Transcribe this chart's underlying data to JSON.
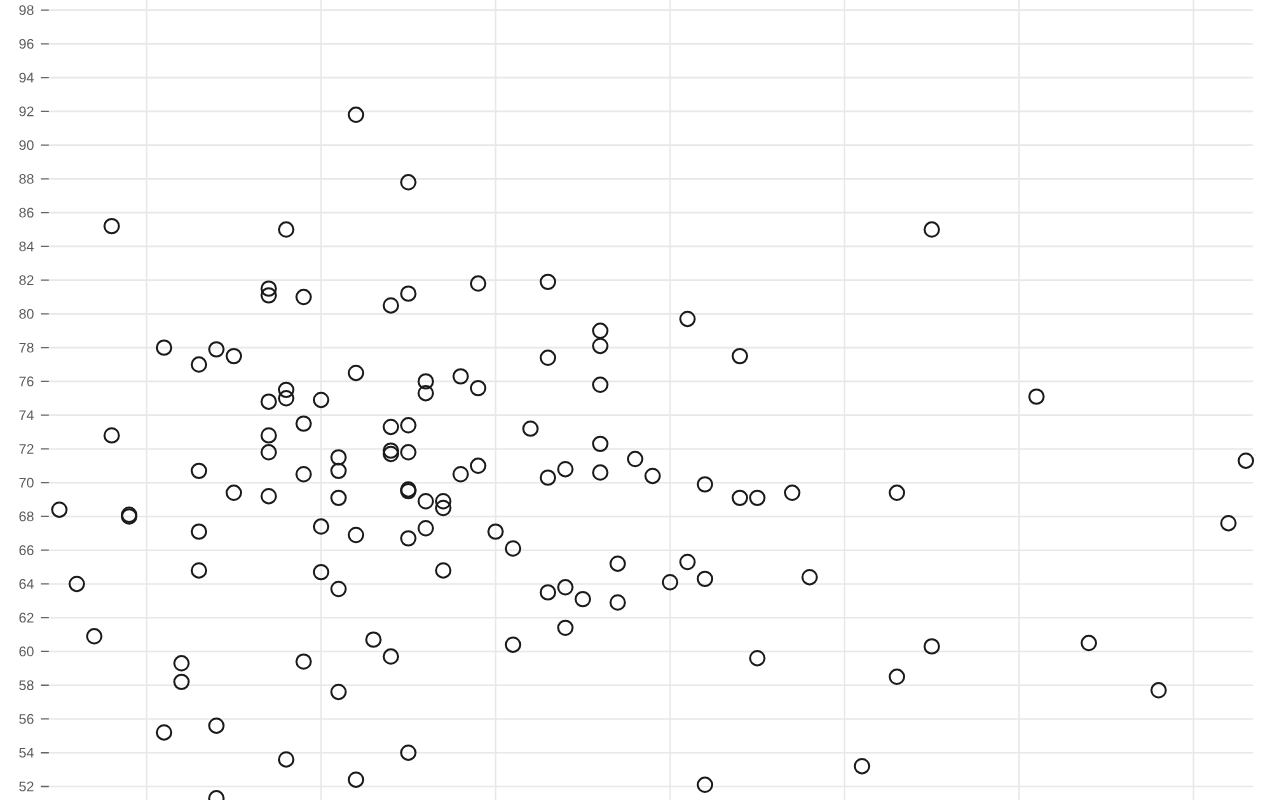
{
  "chart_data": {
    "type": "scatter",
    "marker": "circle",
    "grid": true,
    "tick_labels": "y",
    "ylim": [
      51.2,
      98.6
    ],
    "yticks": [
      52,
      54,
      56,
      58,
      60,
      62,
      64,
      66,
      68,
      70,
      72,
      74,
      76,
      78,
      80,
      82,
      84,
      86,
      88,
      90,
      92,
      94,
      96,
      98
    ],
    "categories": [
      null,
      null,
      null,
      null,
      null,
      null,
      null,
      null,
      null,
      null,
      null,
      null,
      null,
      null,
      null,
      null,
      null,
      null,
      null,
      null,
      null,
      null,
      null,
      null,
      null,
      null,
      null,
      null,
      null,
      null,
      null,
      null,
      null,
      null,
      null,
      null,
      null,
      null,
      null,
      null,
      null,
      null,
      null,
      null,
      null,
      null,
      null,
      null,
      null,
      null,
      null,
      null,
      null,
      null,
      null,
      null,
      null,
      null,
      null,
      null,
      null,
      null,
      null,
      null,
      null,
      null,
      null,
      null,
      null
    ],
    "series": [
      {
        "color": "#1a1a1a",
        "values": [
          68.4,
          64.0,
          60.9,
          72.8,
          68.0,
          null,
          78.0,
          58.2,
          77.0,
          77.9,
          77.5,
          null,
          74.8,
          53.6,
          70.5,
          67.4,
          69.1,
          66.9,
          60.7,
          71.9,
          87.8,
          75.3,
          68.5,
          76.3,
          75.6,
          67.1,
          66.1,
          73.2,
          81.9,
          63.8,
          63.1,
          79.0,
          62.9,
          71.4,
          70.4,
          64.1,
          79.7,
          69.9,
          null,
          77.5,
          69.1,
          null,
          69.4,
          64.4,
          null,
          null,
          53.2,
          null,
          69.4,
          null,
          85.0,
          null,
          null,
          null,
          null,
          null,
          75.1,
          null,
          null,
          60.5,
          null,
          null,
          null,
          57.7,
          null,
          null,
          null,
          67.6,
          71.3
        ]
      },
      {
        "color": "#1a1a1a",
        "values": [
          null,
          null,
          null,
          85.2,
          68.1,
          null,
          55.2,
          59.3,
          67.1,
          55.6,
          69.4,
          null,
          71.8,
          85.0,
          73.5,
          74.9,
          63.7,
          91.8,
          null,
          71.7,
          81.2,
          76.0,
          64.8,
          70.5,
          81.8,
          null,
          60.4,
          null,
          70.3,
          70.8,
          null,
          72.3,
          65.2,
          null,
          null,
          null,
          65.3,
          64.3,
          null,
          69.1,
          59.6,
          null,
          null,
          null,
          null,
          null,
          null,
          null,
          58.5,
          null,
          60.3,
          null,
          null,
          null,
          null,
          null,
          null,
          null,
          null,
          null,
          null,
          null,
          null,
          null,
          null,
          null,
          null,
          null,
          null
        ]
      },
      {
        "color": "#1a1a1a",
        "values": [
          null,
          null,
          null,
          null,
          null,
          null,
          null,
          null,
          64.8,
          51.3,
          null,
          null,
          81.5,
          75.5,
          81.0,
          64.7,
          71.5,
          52.4,
          null,
          73.3,
          73.4,
          67.3,
          68.9,
          null,
          71.0,
          null,
          null,
          null,
          63.5,
          61.4,
          null,
          78.1,
          null,
          null,
          null,
          null,
          null,
          52.1,
          null,
          null,
          null,
          null,
          null,
          null,
          null,
          null,
          null,
          null,
          null,
          null,
          null,
          null,
          null,
          null,
          null,
          null,
          null,
          null,
          null,
          null,
          null,
          null,
          null,
          null,
          null,
          null,
          null,
          null,
          null
        ]
      },
      {
        "color": "#1a1a1a",
        "values": [
          null,
          null,
          null,
          null,
          null,
          null,
          null,
          null,
          70.7,
          null,
          null,
          null,
          81.1,
          75.0,
          59.4,
          null,
          70.7,
          76.5,
          null,
          80.5,
          71.8,
          68.9,
          null,
          null,
          null,
          null,
          null,
          null,
          77.4,
          null,
          null,
          75.8,
          null,
          null,
          null,
          null,
          null,
          null,
          null,
          null,
          null,
          null,
          null,
          null,
          null,
          null,
          null,
          null,
          null,
          null,
          null,
          null,
          null,
          null,
          null,
          null,
          null,
          null,
          null,
          null,
          null,
          null,
          null,
          null,
          null,
          null,
          null,
          null,
          null
        ]
      },
      {
        "color": "#1a1a1a",
        "values": [
          null,
          null,
          null,
          null,
          null,
          null,
          null,
          null,
          null,
          null,
          null,
          null,
          69.2,
          null,
          null,
          null,
          57.6,
          null,
          null,
          59.7,
          54.0,
          null,
          null,
          null,
          null,
          null,
          null,
          null,
          null,
          null,
          null,
          70.6,
          null,
          null,
          null,
          null,
          null,
          null,
          null,
          null,
          null,
          null,
          null,
          null,
          null,
          null,
          null,
          null,
          null,
          null,
          null,
          null,
          null,
          null,
          null,
          null,
          null,
          null,
          null,
          null,
          null,
          null,
          null,
          null,
          null,
          null,
          null,
          null,
          null
        ]
      },
      {
        "color": "#1a1a1a",
        "values": [
          null,
          null,
          null,
          null,
          null,
          null,
          null,
          null,
          null,
          null,
          null,
          null,
          72.8,
          null,
          null,
          null,
          null,
          null,
          null,
          null,
          66.7,
          null,
          null,
          null,
          null,
          null,
          null,
          null,
          null,
          null,
          null,
          null,
          null,
          null,
          null,
          null,
          null,
          null,
          null,
          null,
          null,
          null,
          null,
          null,
          null,
          null,
          null,
          null,
          null,
          null,
          null,
          null,
          null,
          null,
          null,
          null,
          null,
          null,
          null,
          null,
          null,
          null,
          null,
          null,
          null,
          null,
          null,
          null,
          null
        ]
      },
      {
        "color": "#1a1a1a",
        "values": [
          null,
          null,
          null,
          null,
          null,
          null,
          null,
          null,
          null,
          null,
          null,
          null,
          null,
          null,
          null,
          null,
          null,
          null,
          null,
          null,
          69.6,
          null,
          null,
          null,
          null,
          null,
          null,
          null,
          null,
          null,
          null,
          null,
          null,
          null,
          null,
          null,
          null,
          null,
          null,
          null,
          null,
          null,
          null,
          null,
          null,
          null,
          null,
          null,
          null,
          null,
          null,
          null,
          null,
          null,
          null,
          null,
          null,
          null,
          null,
          null,
          null,
          null,
          null,
          null,
          null,
          null,
          null,
          null,
          null
        ]
      },
      {
        "color": "#1a1a1a",
        "values": [
          null,
          null,
          null,
          null,
          null,
          null,
          null,
          null,
          null,
          null,
          null,
          null,
          null,
          null,
          null,
          null,
          null,
          null,
          null,
          null,
          69.5,
          null,
          null,
          null,
          null,
          null,
          null,
          null,
          null,
          null,
          null,
          null,
          null,
          null,
          null,
          null,
          null,
          null,
          null,
          null,
          null,
          null,
          null,
          null,
          null,
          null,
          null,
          null,
          null,
          null,
          null,
          null,
          null,
          null,
          null,
          null,
          null,
          null,
          null,
          null,
          null,
          null,
          null,
          null,
          null,
          null,
          null,
          null,
          null
        ]
      }
    ]
  }
}
